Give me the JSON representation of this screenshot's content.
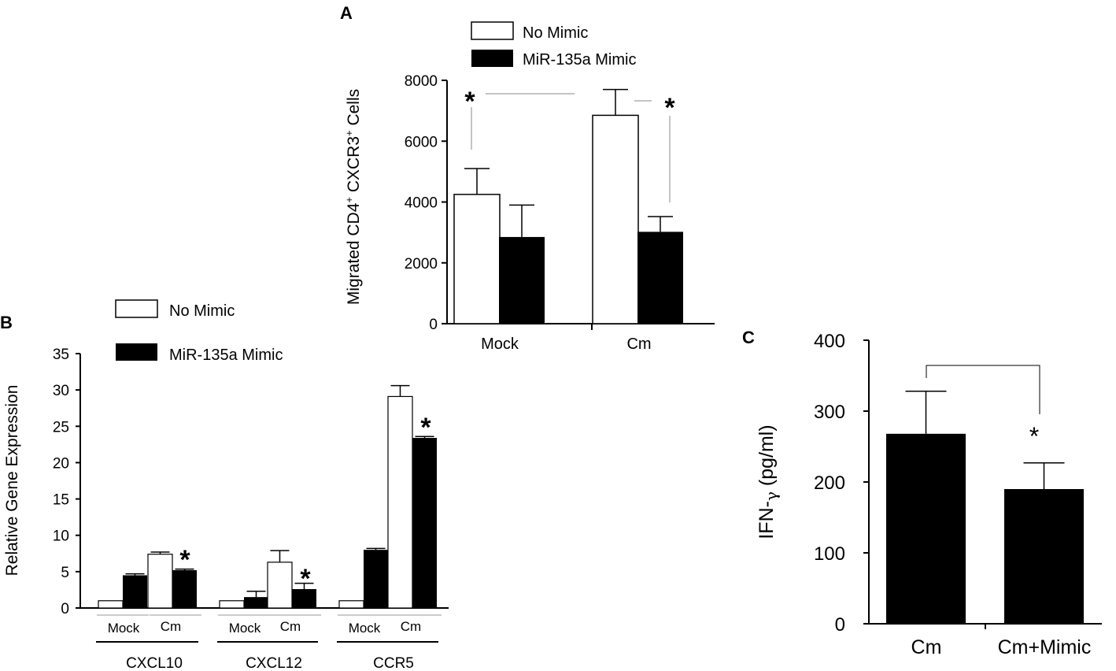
{
  "chart_data": [
    {
      "panel": "A",
      "type": "bar",
      "ylabel_main": "Migrated CD4",
      "ylabel_sup1": "+",
      "ylabel_mid": " CXCR3",
      "ylabel_sup2": "+",
      "ylabel_end": " Cells",
      "ylim": [
        0,
        8000
      ],
      "yticks": [
        "0",
        "2000",
        "4000",
        "6000",
        "8000"
      ],
      "categories": [
        "Mock",
        "Cm"
      ],
      "legend": [
        "No Mimic",
        "MiR-135a Mimic"
      ],
      "legend_position": "top",
      "series": [
        {
          "name": "No Mimic",
          "color": "#ffffff",
          "values": [
            4250,
            6850
          ],
          "errors": [
            850,
            850
          ]
        },
        {
          "name": "MiR-135a Mimic",
          "color": "#000000",
          "values": [
            2850,
            3020
          ],
          "errors": [
            1050,
            500
          ]
        }
      ],
      "significance": [
        "*",
        "*"
      ]
    },
    {
      "panel": "B",
      "type": "bar",
      "ylabel": "Relative Gene Expression",
      "ylim": [
        0,
        35
      ],
      "yticks": [
        "0",
        "5",
        "10",
        "15",
        "20",
        "25",
        "30",
        "35"
      ],
      "legend": [
        "No Mimic",
        "MiR-135a Mimic"
      ],
      "legend_position": "top-left",
      "groups": [
        {
          "name": "CXCL10",
          "subgroups": [
            "Mock",
            "Cm"
          ],
          "no_mimic": [
            1.0,
            7.4
          ],
          "no_mimic_err": [
            0,
            0.3
          ],
          "mimic": [
            4.5,
            5.2
          ],
          "mimic_err": [
            0.2,
            0.15
          ]
        },
        {
          "name": "CXCL12",
          "subgroups": [
            "Mock",
            "Cm"
          ],
          "no_mimic": [
            1.0,
            6.3
          ],
          "no_mimic_err": [
            0,
            1.6
          ],
          "mimic": [
            1.5,
            2.6
          ],
          "mimic_err": [
            0.8,
            0.8
          ]
        },
        {
          "name": "CCR5",
          "subgroups": [
            "Mock",
            "Cm"
          ],
          "no_mimic": [
            1.0,
            29.1
          ],
          "no_mimic_err": [
            0,
            1.5
          ],
          "mimic": [
            8.0,
            23.4
          ],
          "mimic_err": [
            0.2,
            0.2
          ]
        }
      ],
      "significance": [
        "*",
        "*",
        "*"
      ]
    },
    {
      "panel": "C",
      "type": "bar",
      "ylabel_main": "IFN-",
      "ylabel_greek": "γ",
      "ylabel_unit": " (pg/ml)",
      "ylim": [
        0,
        400
      ],
      "yticks": [
        "0",
        "100",
        "200",
        "300",
        "400"
      ],
      "categories": [
        "Cm",
        "Cm+Mimic"
      ],
      "values": [
        268,
        190
      ],
      "errors": [
        60,
        37
      ],
      "color": "#000000",
      "significance": "*"
    }
  ]
}
